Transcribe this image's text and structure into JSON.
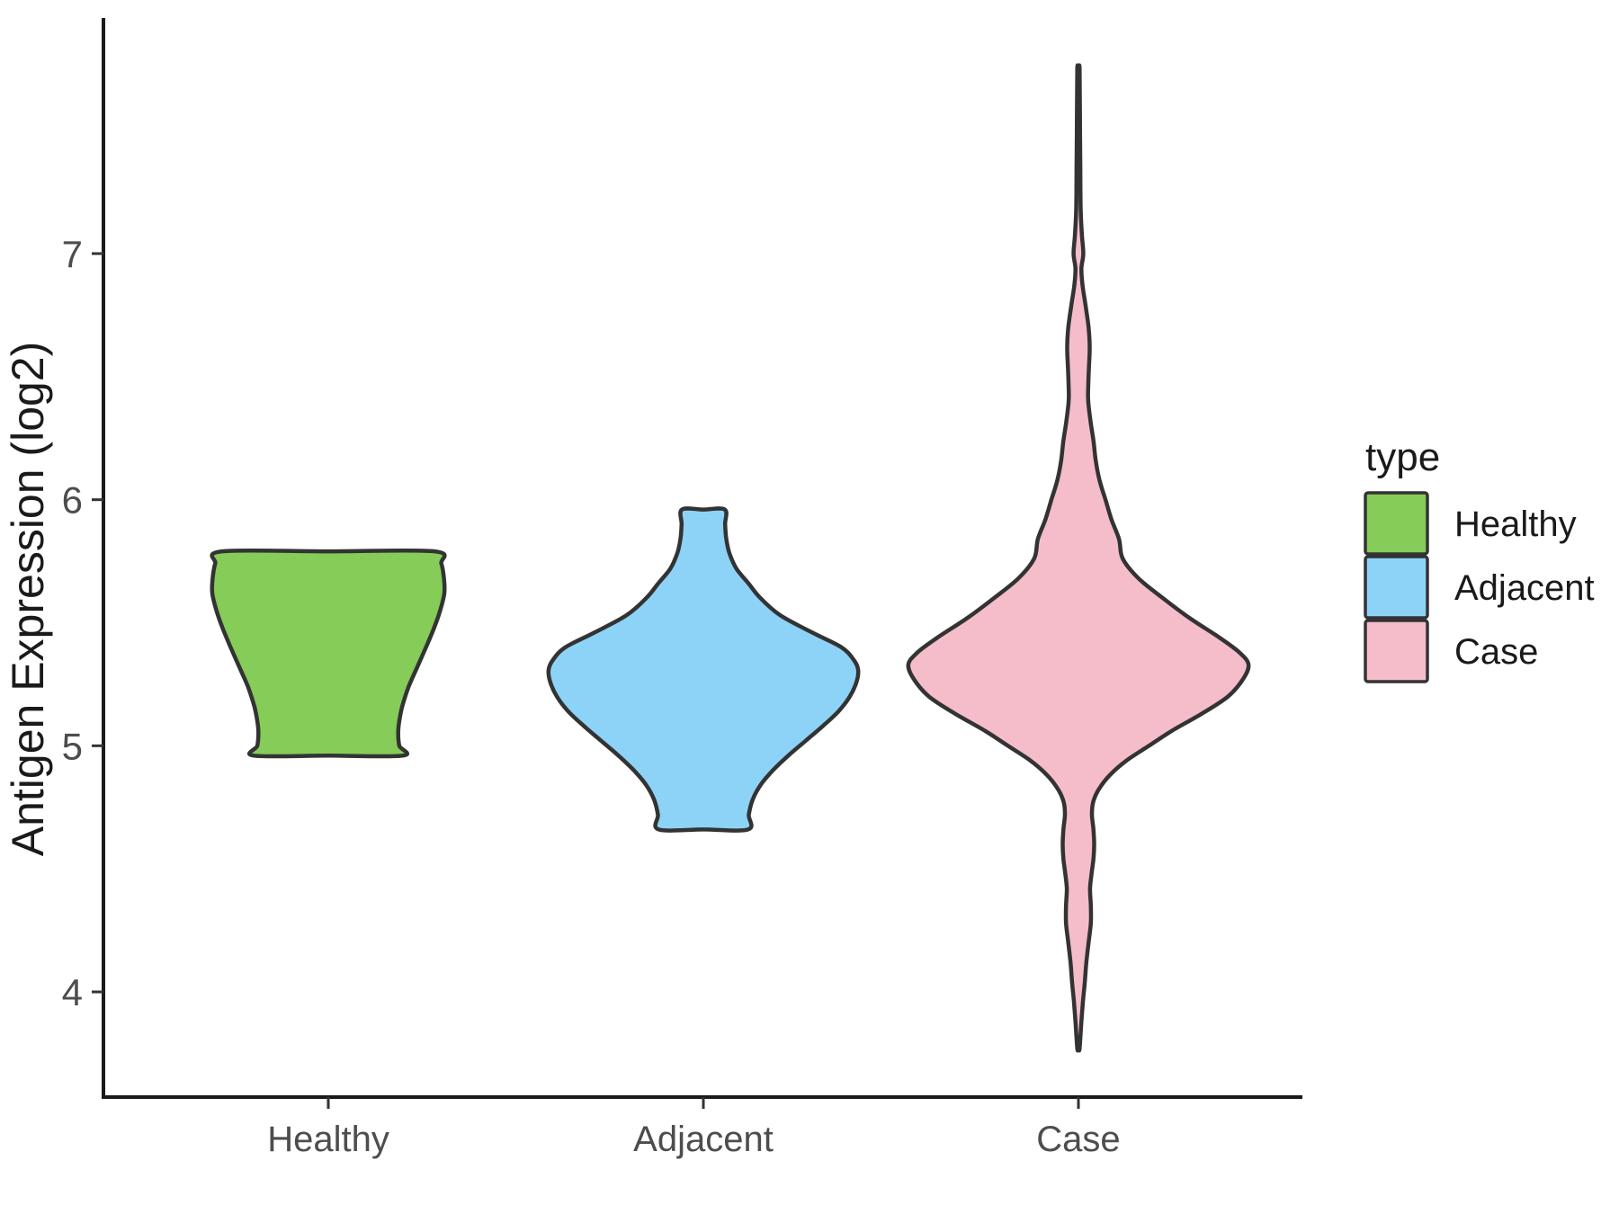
{
  "chart_data": {
    "type": "violin",
    "title": "",
    "xlabel": "",
    "ylabel": "Antigen Expression (log2)",
    "categories": [
      "Healthy",
      "Adjacent",
      "Case"
    ],
    "y_ticks": [
      4,
      5,
      6,
      7
    ],
    "ylim": [
      3.6,
      7.95
    ],
    "grid": false,
    "legend": {
      "title": "type",
      "position": "right",
      "entries": [
        {
          "label": "Healthy",
          "color": "#85CC58"
        },
        {
          "label": "Adjacent",
          "color": "#8DD3F7"
        },
        {
          "label": "Case",
          "color": "#F5BDCA"
        }
      ]
    },
    "styles": {
      "outline_color": "#333333",
      "axis_line_color": "#1a1a1a",
      "tick_mark_color": "#333333",
      "tick_label_color": "#4D4D4D",
      "axis_title_color": "#1a1a1a",
      "legend_text_color": "#1a1a1a"
    },
    "series": [
      {
        "name": "Healthy",
        "color": "#85CC58",
        "value_range": [
          4.96,
          5.79
        ],
        "peak_value": 5.62,
        "density_profile": [
          [
            5.79,
            0.283
          ],
          [
            5.74,
            0.301
          ],
          [
            5.68,
            0.308
          ],
          [
            5.62,
            0.309
          ],
          [
            5.55,
            0.298
          ],
          [
            5.48,
            0.282
          ],
          [
            5.4,
            0.26
          ],
          [
            5.32,
            0.237
          ],
          [
            5.24,
            0.214
          ],
          [
            5.16,
            0.197
          ],
          [
            5.1,
            0.189
          ],
          [
            5.05,
            0.186
          ],
          [
            5.0,
            0.189
          ],
          [
            4.96,
            0.198
          ]
        ]
      },
      {
        "name": "Adjacent",
        "color": "#8DD3F7",
        "value_range": [
          4.66,
          5.96
        ],
        "peak_value": 5.31,
        "density_profile": [
          [
            5.96,
            0.057
          ],
          [
            5.9,
            0.058
          ],
          [
            5.84,
            0.061
          ],
          [
            5.78,
            0.07
          ],
          [
            5.72,
            0.088
          ],
          [
            5.66,
            0.12
          ],
          [
            5.6,
            0.152
          ],
          [
            5.53,
            0.205
          ],
          [
            5.46,
            0.29
          ],
          [
            5.4,
            0.368
          ],
          [
            5.35,
            0.4
          ],
          [
            5.31,
            0.412
          ],
          [
            5.26,
            0.408
          ],
          [
            5.2,
            0.39
          ],
          [
            5.14,
            0.36
          ],
          [
            5.08,
            0.318
          ],
          [
            5.02,
            0.272
          ],
          [
            4.96,
            0.226
          ],
          [
            4.9,
            0.185
          ],
          [
            4.84,
            0.152
          ],
          [
            4.78,
            0.131
          ],
          [
            4.72,
            0.121
          ],
          [
            4.66,
            0.119
          ]
        ]
      },
      {
        "name": "Case",
        "color": "#F5BDCA",
        "value_range": [
          3.77,
          7.75
        ],
        "peak_value": 5.33,
        "density_profile": [
          [
            7.75,
            0.003
          ],
          [
            7.55,
            0.004
          ],
          [
            7.35,
            0.005
          ],
          [
            7.18,
            0.006
          ],
          [
            7.08,
            0.009
          ],
          [
            7.0,
            0.013
          ],
          [
            6.94,
            0.008
          ],
          [
            6.87,
            0.011
          ],
          [
            6.79,
            0.019
          ],
          [
            6.7,
            0.027
          ],
          [
            6.62,
            0.03
          ],
          [
            6.54,
            0.028
          ],
          [
            6.46,
            0.026
          ],
          [
            6.4,
            0.026
          ],
          [
            6.32,
            0.032
          ],
          [
            6.24,
            0.04
          ],
          [
            6.16,
            0.046
          ],
          [
            6.08,
            0.056
          ],
          [
            6.0,
            0.072
          ],
          [
            5.92,
            0.088
          ],
          [
            5.84,
            0.108
          ],
          [
            5.76,
            0.118
          ],
          [
            5.68,
            0.16
          ],
          [
            5.6,
            0.225
          ],
          [
            5.52,
            0.295
          ],
          [
            5.44,
            0.375
          ],
          [
            5.38,
            0.428
          ],
          [
            5.33,
            0.453
          ],
          [
            5.27,
            0.438
          ],
          [
            5.2,
            0.398
          ],
          [
            5.13,
            0.328
          ],
          [
            5.06,
            0.248
          ],
          [
            5.0,
            0.188
          ],
          [
            4.94,
            0.128
          ],
          [
            4.88,
            0.083
          ],
          [
            4.82,
            0.053
          ],
          [
            4.77,
            0.039
          ],
          [
            4.72,
            0.036
          ],
          [
            4.66,
            0.04
          ],
          [
            4.6,
            0.042
          ],
          [
            4.54,
            0.04
          ],
          [
            4.48,
            0.035
          ],
          [
            4.42,
            0.031
          ],
          [
            4.35,
            0.033
          ],
          [
            4.28,
            0.033
          ],
          [
            4.2,
            0.027
          ],
          [
            4.12,
            0.021
          ],
          [
            4.04,
            0.017
          ],
          [
            3.96,
            0.012
          ],
          [
            3.88,
            0.008
          ],
          [
            3.77,
            0.003
          ]
        ]
      }
    ]
  }
}
